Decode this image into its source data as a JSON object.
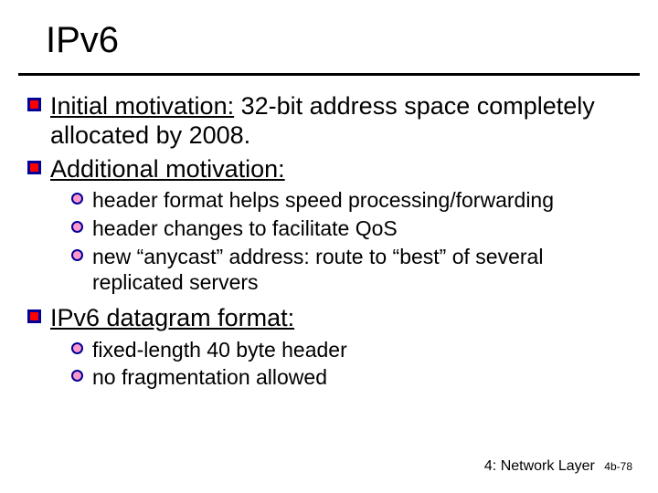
{
  "title": "IPv6",
  "colors": {
    "underline": "#000000",
    "sq_fill": "#ff0000",
    "sq_border": "#000099",
    "circ_fill": "#ff99cc",
    "circ_border": "#000099",
    "text": "#000000",
    "bg": "#ffffff"
  },
  "lvl1": [
    {
      "prefix": "Initial motivation:",
      "rest": " 32-bit address space completely allocated by 2008."
    },
    {
      "prefix": "Additional motivation:",
      "rest": ""
    },
    {
      "prefix": "IPv6 datagram format:",
      "rest": ""
    }
  ],
  "lvl2a": [
    "header format helps speed processing/forwarding",
    "header changes to facilitate QoS",
    "new “anycast” address: route to “best” of several replicated servers"
  ],
  "lvl2b": [
    "fixed-length 40 byte header",
    "no fragmentation allowed"
  ],
  "footer": {
    "chapter": "4: Network Layer",
    "page": "4b-78"
  },
  "font": {
    "title_size": 40,
    "lvl1_size": 27,
    "lvl2_size": 23,
    "footer_size": 16
  }
}
